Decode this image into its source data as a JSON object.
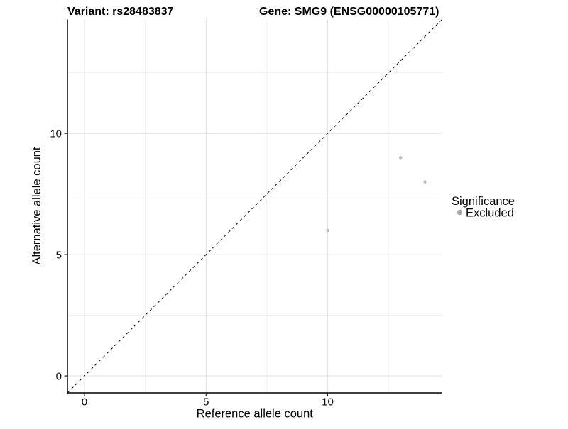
{
  "chart_data": {
    "type": "scatter",
    "titles": {
      "variant": "Variant: rs28483837",
      "gene": "Gene: SMG9 (ENSG00000105771)"
    },
    "xlabel": "Reference allele count",
    "ylabel": "Alternative allele count",
    "xlim": [
      -0.7,
      14.7
    ],
    "ylim": [
      -0.7,
      14.7
    ],
    "x_ticks": [
      0,
      5,
      10
    ],
    "y_ticks": [
      0,
      5,
      10
    ],
    "x_minor_ticks": [
      2.5,
      7.5,
      12.5
    ],
    "y_minor_ticks": [
      2.5,
      7.5,
      12.5
    ],
    "grid": true,
    "points": [
      {
        "x": 10,
        "y": 6,
        "group": "Excluded"
      },
      {
        "x": 13,
        "y": 9,
        "group": "Excluded"
      },
      {
        "x": 14,
        "y": 8,
        "group": "Excluded"
      }
    ],
    "identity_line": {
      "equation": "y = x",
      "style": "dashed",
      "from": [
        -0.7,
        -0.7
      ],
      "to": [
        14.7,
        14.7
      ]
    },
    "legend": {
      "title": "Significance",
      "position": "right",
      "items": [
        {
          "label": "Excluded",
          "color": "#a9a9a9"
        }
      ]
    },
    "colors": {
      "background": "#ffffff",
      "point": "#bcbcbc",
      "legend_point": "#a9a9a9",
      "grid_major": "#e3e3e3",
      "grid_minor": "#efefef",
      "axis_line": "#000000",
      "tick_mark": "#1a1a1a",
      "identity_line": "#1f1f1f",
      "text": "#000000"
    }
  }
}
